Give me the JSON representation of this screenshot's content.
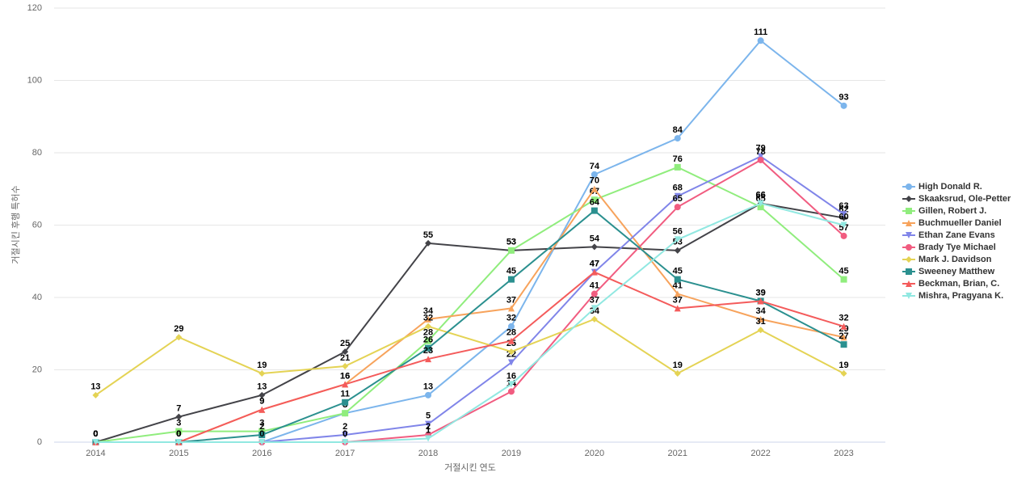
{
  "chart_data": {
    "type": "line",
    "x_label": "거절시킨 연도",
    "y_label": "거절시킨 후행 특허수",
    "categories": [
      "2014",
      "2015",
      "2016",
      "2017",
      "2018",
      "2019",
      "2020",
      "2021",
      "2022",
      "2023"
    ],
    "ylim": [
      0,
      120
    ],
    "yticks": [
      0,
      20,
      40,
      60,
      80,
      100,
      120
    ],
    "grid": true,
    "legend": "right",
    "series": [
      {
        "name": "High Donald R.",
        "color": "#7cb5ec",
        "marker": "circle",
        "values": [
          0,
          0,
          0,
          8,
          13,
          32,
          74,
          84,
          111,
          93
        ]
      },
      {
        "name": "Skaaksrud, Ole-Petter",
        "color": "#434348",
        "marker": "diamond",
        "values": [
          0,
          7,
          13,
          25,
          55,
          53,
          54,
          53,
          66,
          62
        ]
      },
      {
        "name": "Gillen, Robert J.",
        "color": "#90ed7d",
        "marker": "square",
        "values": [
          0,
          3,
          3,
          8,
          28,
          53,
          67,
          76,
          65,
          45
        ]
      },
      {
        "name": "Buchmueller Daniel",
        "color": "#f7a35c",
        "marker": "triangle",
        "values": [
          0,
          0,
          9,
          16,
          34,
          37,
          70,
          41,
          34,
          29
        ]
      },
      {
        "name": "Ethan Zane Evans",
        "color": "#8085e9",
        "marker": "triangle-down",
        "values": [
          0,
          0,
          0,
          2,
          5,
          22,
          47,
          68,
          79,
          63
        ]
      },
      {
        "name": "Brady Tye Michael",
        "color": "#f15c80",
        "marker": "circle",
        "values": [
          0,
          0,
          0,
          0,
          2,
          14,
          41,
          65,
          78,
          57
        ]
      },
      {
        "name": "Mark J. Davidson",
        "color": "#e4d354",
        "marker": "diamond",
        "values": [
          13,
          29,
          19,
          21,
          32,
          25,
          34,
          19,
          31,
          19
        ]
      },
      {
        "name": "Sweeney Matthew",
        "color": "#2b908f",
        "marker": "square",
        "values": [
          0,
          0,
          2,
          11,
          26,
          45,
          64,
          45,
          39,
          27
        ]
      },
      {
        "name": "Beckman, Brian, C.",
        "color": "#f45b5b",
        "marker": "triangle",
        "values": [
          0,
          0,
          9,
          16,
          23,
          28,
          47,
          37,
          39,
          32
        ]
      },
      {
        "name": "Mishra, Pragyana K.",
        "color": "#91e8e1",
        "marker": "triangle-down",
        "values": [
          0,
          0,
          0,
          0,
          1,
          16,
          37,
          56,
          66,
          60
        ]
      }
    ]
  }
}
